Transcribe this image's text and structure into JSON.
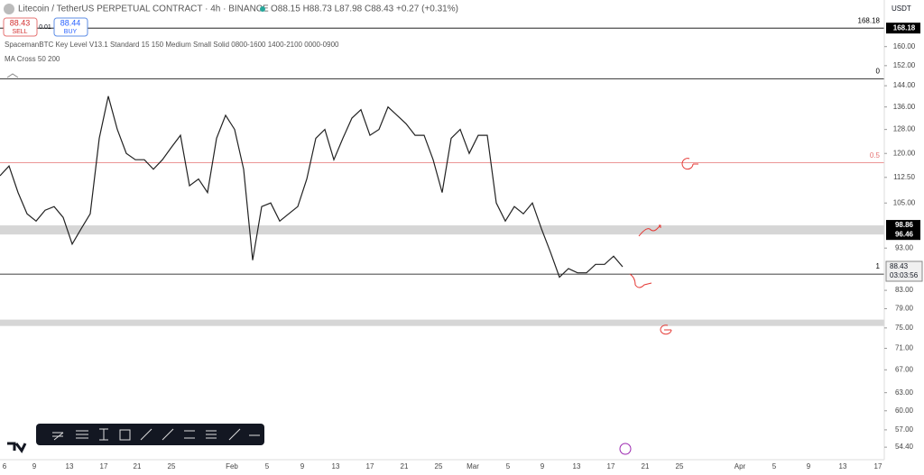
{
  "header": {
    "symbol": "Litecoin / TetherUS PERPETUAL CONTRACT · 4h · BINANCE",
    "ohlc": "O88.15 H88.73 L87.98 C88.43 +0.27 (+0.31%)",
    "sell_price": "88.43",
    "sell": "SELL",
    "spread": "0.01",
    "buy_price": "88.44",
    "buy": "BUY",
    "indicator_1": "SpacemanBTC Key Level V13.1 Standard 15 150 Medium Small Solid 0800-1600 1400-2100 0000-0900",
    "indicator_2": "MA Cross 50 200",
    "currency": "USDT"
  },
  "chart_data": {
    "type": "line",
    "log_y": true,
    "color": "#222222",
    "ylim": [
      52.6,
      181.4
    ],
    "yticks": [
      {
        "value": 160,
        "label": "160.00"
      },
      {
        "value": 152,
        "label": "152.00"
      },
      {
        "value": 144,
        "label": "144.00"
      },
      {
        "value": 136,
        "label": "136.00"
      },
      {
        "value": 128,
        "label": "128.00"
      },
      {
        "value": 120,
        "label": "120.00"
      },
      {
        "value": 112.5,
        "label": "112.50"
      },
      {
        "value": 105,
        "label": "105.00"
      },
      {
        "value": 93,
        "label": "93.00"
      },
      {
        "value": 83,
        "label": "83.00"
      },
      {
        "value": 79,
        "label": "79.00"
      },
      {
        "value": 75,
        "label": "75.00"
      },
      {
        "value": 71,
        "label": "71.00"
      },
      {
        "value": 67,
        "label": "67.00"
      },
      {
        "value": 63,
        "label": "63.00"
      },
      {
        "value": 60,
        "label": "60.00"
      },
      {
        "value": 57,
        "label": "57.00"
      },
      {
        "value": 54.4,
        "label": "54.40"
      }
    ],
    "xticks": [
      "6",
      "9",
      "13",
      "17",
      "21",
      "25",
      "Feb",
      "5",
      "9",
      "13",
      "17",
      "21",
      "25",
      "Mar",
      "5",
      "9",
      "13",
      "17",
      "21",
      "25",
      "Apr",
      "5",
      "9",
      "13",
      "17"
    ],
    "values": [
      113,
      116,
      108,
      102,
      100,
      103,
      104,
      101,
      94,
      98,
      102,
      125,
      140,
      128,
      120,
      118,
      118,
      115,
      118,
      122,
      126,
      110,
      112,
      108,
      125,
      133,
      128,
      115,
      90,
      104,
      105,
      100,
      102,
      104,
      112,
      125,
      128,
      118,
      125,
      132,
      135,
      126,
      128,
      136,
      133,
      130,
      126,
      126,
      118,
      108,
      125,
      128,
      120,
      126,
      126,
      105,
      100,
      104,
      102,
      105,
      98,
      92,
      86,
      88,
      87,
      87,
      89,
      89,
      91,
      88.43
    ],
    "levels": [
      {
        "value": 168.18,
        "label": "168.18",
        "color": "#000000"
      },
      {
        "value": 146.7,
        "label": "0",
        "color": "#000000"
      },
      {
        "value": 117,
        "label": "0.5",
        "color": "#e57373"
      },
      {
        "value": 86.7,
        "label": "1",
        "color": "#000000"
      }
    ],
    "zones": [
      {
        "low": 96.46,
        "high": 98.86,
        "low_label": "96.46",
        "high_label": "98.86"
      },
      {
        "low": 75.4,
        "high": 76.7
      }
    ],
    "last_price": "88.43",
    "countdown": "03:03:56"
  }
}
